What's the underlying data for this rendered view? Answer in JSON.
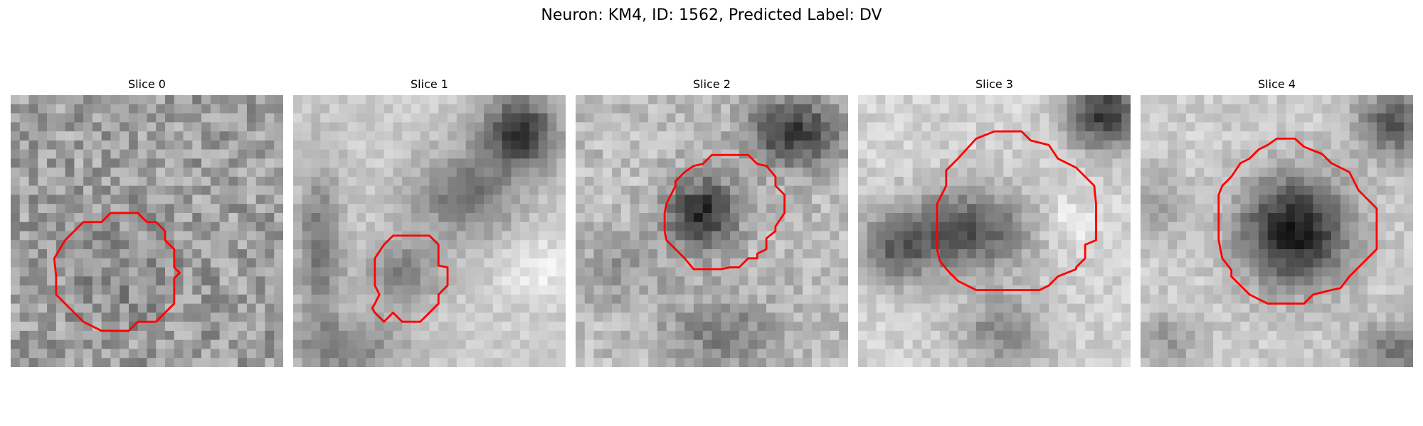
{
  "figure": {
    "title": "Neuron: KM4, ID: 1562, Predicted Label: DV",
    "contour_color": "#ff0000"
  },
  "panels": [
    {
      "title": "Slice 0"
    },
    {
      "title": "Slice 1"
    },
    {
      "title": "Slice 2"
    },
    {
      "title": "Slice 3"
    },
    {
      "title": "Slice 4"
    }
  ]
}
